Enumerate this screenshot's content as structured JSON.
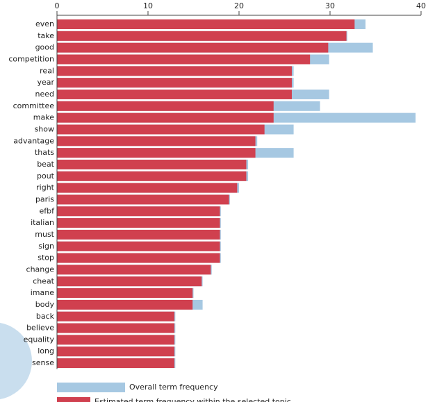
{
  "chart_data": {
    "type": "bar",
    "orientation": "horizontal",
    "categories": [
      "even",
      "take",
      "good",
      "competition",
      "real",
      "year",
      "need",
      "committee",
      "make",
      "show",
      "advantage",
      "thats",
      "beat",
      "pout",
      "right",
      "paris",
      "efbf",
      "italian",
      "must",
      "sign",
      "stop",
      "change",
      "cheat",
      "imane",
      "body",
      "back",
      "believe",
      "equality",
      "long",
      "sense"
    ],
    "series": [
      {
        "name": "Overall term frequency",
        "color": "#a6c8e2",
        "values": [
          33.9,
          31.9,
          34.7,
          29.9,
          26,
          26,
          29.9,
          28.9,
          39.4,
          26,
          22,
          26,
          21,
          21,
          20,
          19,
          18,
          18,
          18,
          18,
          18,
          17,
          16,
          15,
          16,
          13,
          13,
          13,
          13,
          13
        ]
      },
      {
        "name": "Estimated term frequency within the selected topic",
        "color": "#d0404f",
        "values": [
          32.7,
          31.8,
          29.8,
          27.8,
          25.8,
          25.8,
          25.8,
          23.8,
          23.8,
          22.8,
          21.8,
          21.8,
          20.8,
          20.8,
          19.8,
          18.9,
          17.9,
          17.9,
          17.9,
          17.9,
          17.9,
          16.9,
          15.9,
          14.9,
          14.9,
          12.9,
          12.9,
          12.9,
          12.9,
          12.9
        ]
      }
    ],
    "xlim": [
      0,
      40
    ],
    "xticks": [
      0,
      10,
      20,
      30,
      40
    ]
  }
}
